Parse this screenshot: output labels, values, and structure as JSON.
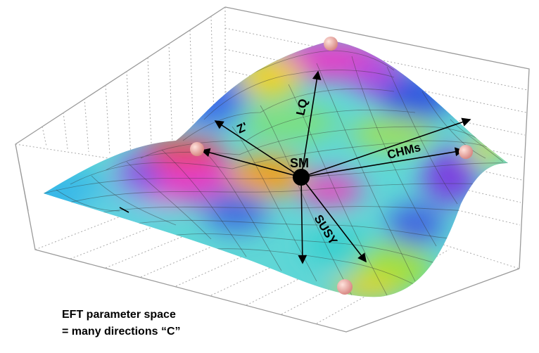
{
  "labels": {
    "lq": "LQ",
    "z_prime": "Z'",
    "sm": "SM",
    "chms": "CHMs",
    "susy": "SUSY"
  },
  "caption": {
    "line1": "EFT parameter space",
    "line2": "= many directions “C”"
  }
}
